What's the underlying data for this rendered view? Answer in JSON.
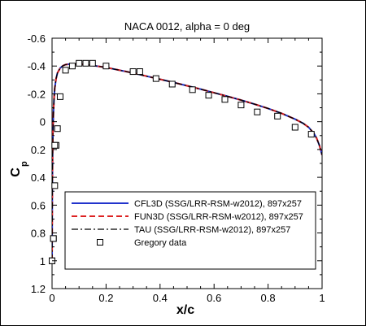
{
  "chart_data": {
    "type": "line",
    "title": "NACA 0012, alpha = 0 deg",
    "xlabel": "x/c",
    "ylabel_main": "C",
    "ylabel_sub": "p",
    "xlim": [
      0,
      1
    ],
    "ylim": [
      1.2,
      -0.6
    ],
    "y_inverted": true,
    "x_ticks": [
      0,
      0.2,
      0.4,
      0.6,
      0.8,
      1
    ],
    "x_tick_labels": [
      "0",
      "0.2",
      "0.4",
      "0.6",
      "0.8",
      "1"
    ],
    "y_ticks": [
      -0.6,
      -0.4,
      -0.2,
      0,
      0.2,
      0.4,
      0.6,
      0.8,
      1,
      1.2
    ],
    "y_tick_labels": [
      "-0.6",
      "-0.4",
      "-0.2",
      "0",
      "0.2",
      "0.4",
      "0.6",
      "0.8",
      "1",
      "1.2"
    ],
    "grid": false,
    "legend_position": "bottom-right",
    "series": [
      {
        "name": "CFL3D (SSG/LRR-RSM-w2012), 897x257",
        "color": "#2233cc",
        "dash": "solid",
        "x": [
          0,
          0.0005,
          0.001,
          0.002,
          0.003,
          0.005,
          0.0075,
          0.01,
          0.015,
          0.02,
          0.03,
          0.04,
          0.05,
          0.06,
          0.08,
          0.1,
          0.12,
          0.15,
          0.2,
          0.25,
          0.3,
          0.35,
          0.4,
          0.45,
          0.5,
          0.55,
          0.6,
          0.65,
          0.7,
          0.75,
          0.8,
          0.85,
          0.9,
          0.93,
          0.95,
          0.97,
          0.98,
          0.99,
          1
        ],
        "y": [
          1.0,
          0.7,
          0.5,
          0.25,
          0.1,
          -0.06,
          -0.17,
          -0.24,
          -0.31,
          -0.35,
          -0.385,
          -0.402,
          -0.41,
          -0.413,
          -0.415,
          -0.414,
          -0.411,
          -0.404,
          -0.39,
          -0.37,
          -0.35,
          -0.327,
          -0.305,
          -0.282,
          -0.258,
          -0.234,
          -0.208,
          -0.182,
          -0.155,
          -0.126,
          -0.095,
          -0.06,
          -0.018,
          0.012,
          0.04,
          0.085,
          0.12,
          0.17,
          0.24
        ]
      },
      {
        "name": "FUN3D (SSG/LRR-RSM-w2012), 897x257",
        "color": "#dd2222",
        "dash": "dashed",
        "x": [
          0,
          0.0005,
          0.001,
          0.002,
          0.003,
          0.005,
          0.0075,
          0.01,
          0.015,
          0.02,
          0.03,
          0.04,
          0.05,
          0.06,
          0.08,
          0.1,
          0.12,
          0.15,
          0.2,
          0.25,
          0.3,
          0.35,
          0.4,
          0.45,
          0.5,
          0.55,
          0.6,
          0.65,
          0.7,
          0.75,
          0.8,
          0.85,
          0.9,
          0.93,
          0.95,
          0.97,
          0.98,
          0.99,
          1
        ],
        "y": [
          1.0,
          0.7,
          0.5,
          0.25,
          0.1,
          -0.06,
          -0.17,
          -0.24,
          -0.31,
          -0.35,
          -0.385,
          -0.402,
          -0.41,
          -0.413,
          -0.415,
          -0.414,
          -0.411,
          -0.404,
          -0.39,
          -0.37,
          -0.35,
          -0.327,
          -0.305,
          -0.282,
          -0.258,
          -0.234,
          -0.208,
          -0.182,
          -0.155,
          -0.126,
          -0.095,
          -0.06,
          -0.018,
          0.012,
          0.04,
          0.085,
          0.12,
          0.17,
          0.24
        ]
      },
      {
        "name": "TAU (SSG/LRR-RSM-w2012), 897x257",
        "color": "#000000",
        "dash": "dashdot",
        "x": [
          0,
          0.0005,
          0.001,
          0.002,
          0.003,
          0.005,
          0.0075,
          0.01,
          0.015,
          0.02,
          0.03,
          0.04,
          0.05,
          0.06,
          0.08,
          0.1,
          0.12,
          0.15,
          0.2,
          0.25,
          0.3,
          0.35,
          0.4,
          0.45,
          0.5,
          0.55,
          0.6,
          0.65,
          0.7,
          0.75,
          0.8,
          0.85,
          0.9,
          0.93,
          0.95,
          0.97,
          0.98,
          0.99,
          1
        ],
        "y": [
          1.0,
          0.7,
          0.5,
          0.25,
          0.1,
          -0.06,
          -0.17,
          -0.24,
          -0.31,
          -0.35,
          -0.385,
          -0.402,
          -0.41,
          -0.413,
          -0.415,
          -0.414,
          -0.411,
          -0.404,
          -0.39,
          -0.37,
          -0.35,
          -0.327,
          -0.305,
          -0.282,
          -0.258,
          -0.234,
          -0.208,
          -0.182,
          -0.155,
          -0.126,
          -0.095,
          -0.06,
          -0.018,
          0.012,
          0.04,
          0.085,
          0.12,
          0.17,
          0.24
        ]
      },
      {
        "name": "Gregory data",
        "color": "#000000",
        "marker": "square",
        "x": [
          0.0,
          0.005,
          0.01,
          0.015,
          0.02,
          0.03,
          0.05,
          0.075,
          0.1,
          0.125,
          0.15,
          0.2,
          0.3,
          0.325,
          0.385,
          0.445,
          0.52,
          0.58,
          0.64,
          0.7,
          0.76,
          0.835,
          0.9,
          0.96,
          0.0,
          0.005,
          0.01
        ],
        "y": [
          1.0,
          0.84,
          0.46,
          0.17,
          0.05,
          -0.18,
          -0.37,
          -0.4,
          -0.42,
          -0.42,
          -0.42,
          -0.4,
          -0.36,
          -0.36,
          -0.31,
          -0.27,
          -0.23,
          -0.19,
          -0.16,
          -0.12,
          -0.07,
          -0.04,
          0.04,
          0.09,
          1.0,
          0.84,
          0.17
        ]
      }
    ]
  }
}
